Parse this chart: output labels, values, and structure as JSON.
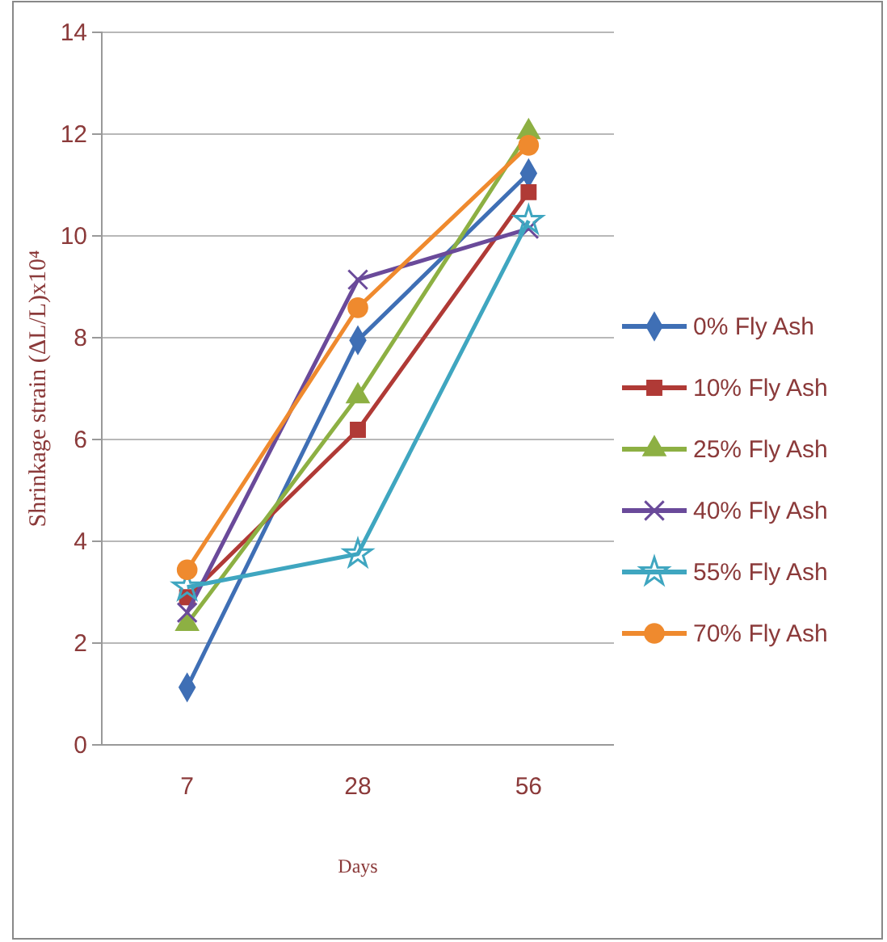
{
  "chart_data": {
    "type": "line",
    "xlabel": "Days",
    "ylabel": "Shrinkage strain (ΔL/L)x10⁴",
    "categories": [
      "7",
      "28",
      "56"
    ],
    "ylim": [
      0,
      14
    ],
    "yticks": [
      0,
      2,
      4,
      6,
      8,
      10,
      12,
      14
    ],
    "grid": "y",
    "legend": "right",
    "series": [
      {
        "name": "0% Fly Ash",
        "color": "#3f6fb5",
        "marker": "diamond",
        "values": [
          1.13,
          7.95,
          11.23
        ]
      },
      {
        "name": "10% Fly Ash",
        "color": "#b03a36",
        "marker": "square",
        "values": [
          2.9,
          6.19,
          10.86
        ]
      },
      {
        "name": "25% Fly Ash",
        "color": "#8db043",
        "marker": "triangle",
        "values": [
          2.38,
          6.85,
          12.04
        ]
      },
      {
        "name": "40% Fly Ash",
        "color": "#6a4a9a",
        "marker": "cross",
        "values": [
          2.6,
          9.14,
          10.14
        ]
      },
      {
        "name": "55% Fly Ash",
        "color": "#3fa6c0",
        "marker": "star",
        "values": [
          3.1,
          3.75,
          10.3
        ]
      },
      {
        "name": "70% Fly Ash",
        "color": "#ef8a2e",
        "marker": "circle",
        "values": [
          3.44,
          8.59,
          11.78
        ]
      }
    ]
  }
}
